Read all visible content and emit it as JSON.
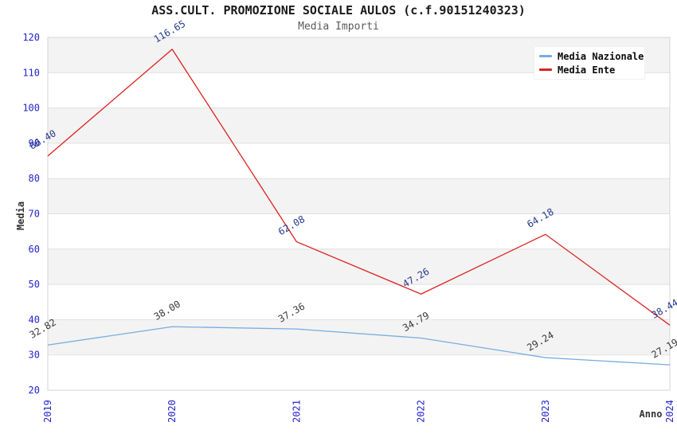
{
  "header": {
    "title": "ASS.CULT. PROMOZIONE SOCIALE AULOS (c.f.90151240323)",
    "subtitle": "Media Importi"
  },
  "chart_data": {
    "type": "line",
    "x": [
      "2019",
      "2020",
      "2021",
      "2022",
      "2023",
      "2024"
    ],
    "series": [
      {
        "name": "Media Nazionale",
        "color": "#77ade0",
        "label_color": "#3a3a3a",
        "values": [
          32.82,
          38.0,
          37.36,
          34.79,
          29.24,
          27.19
        ],
        "point_labels": [
          "32.82",
          "38.00",
          "37.36",
          "34.79",
          "29.24",
          "27.19"
        ]
      },
      {
        "name": "Media Ente",
        "color": "#dd2222",
        "label_color": "#253a8c",
        "values": [
          86.4,
          116.65,
          62.08,
          47.26,
          64.18,
          38.44
        ],
        "point_labels": [
          "86.40",
          "116.65",
          "62.08",
          "47.26",
          "64.18",
          "38.44"
        ]
      }
    ],
    "xlabel": "Anno",
    "ylabel": "Media",
    "ylim": [
      20,
      120
    ],
    "ytick_step": 10,
    "yticks": [
      "20",
      "30",
      "40",
      "50",
      "60",
      "70",
      "80",
      "90",
      "100",
      "110",
      "120"
    ],
    "grid": "horizontal-bands",
    "legend_position": "top-right"
  },
  "colors": {
    "tick_label": "#2424cc",
    "axis_title": "#333333",
    "band_fill": "#f3f3f3",
    "grid_line": "#e1e1e1",
    "plot_border": "#d4d4d4",
    "background": "#ffffff"
  }
}
